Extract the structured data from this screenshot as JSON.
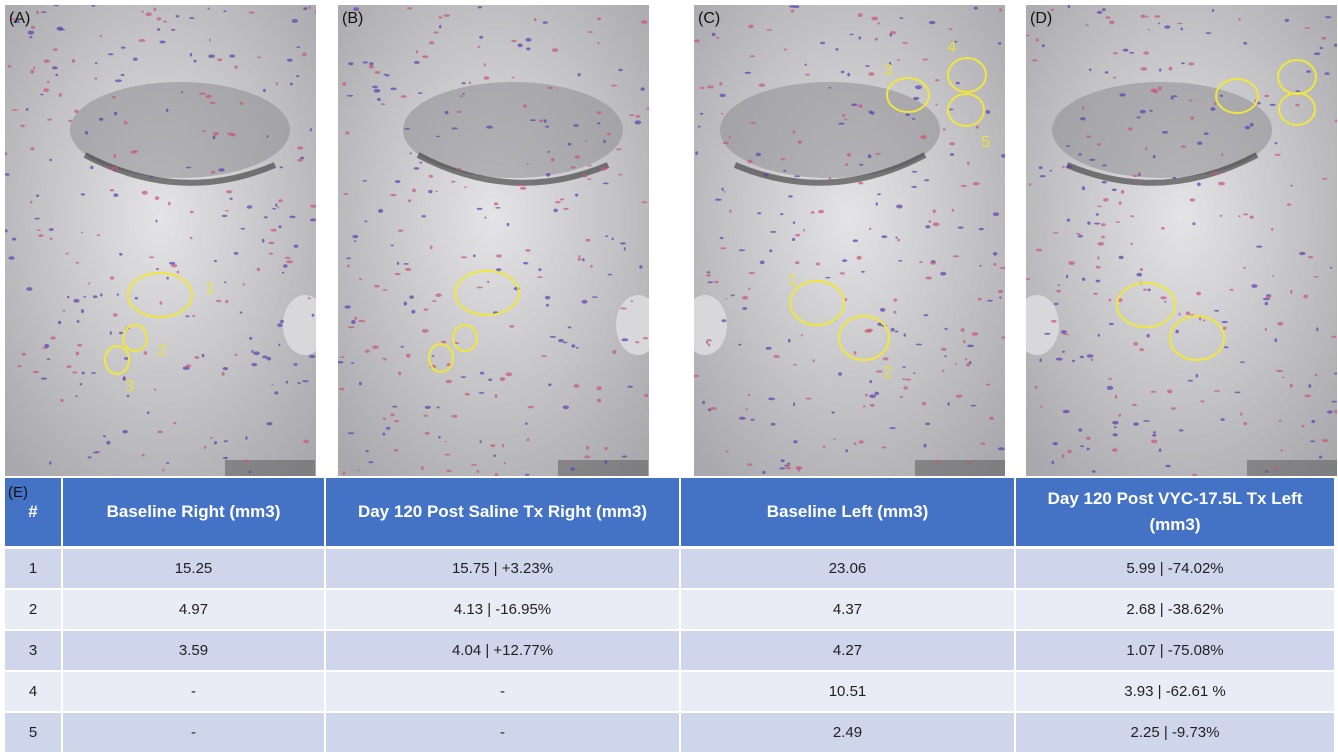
{
  "panels": [
    {
      "label": "(A)",
      "annotations": [
        "1",
        "2",
        "3"
      ]
    },
    {
      "label": "(B)",
      "annotations": []
    },
    {
      "label": "(C)",
      "annotations": [
        "1",
        "2",
        "3",
        "4",
        "5"
      ]
    },
    {
      "label": "(D)",
      "annotations": []
    }
  ],
  "table": {
    "label": "(E)",
    "header": [
      "#",
      "Baseline Right (mm3)",
      "Day 120 Post Saline Tx Right (mm3)",
      "Baseline Left  (mm3)",
      "Day 120 Post VYC-17.5L Tx Left (mm3)"
    ],
    "rows": [
      [
        "1",
        "15.25",
        "15.75 | +3.23%",
        "23.06",
        "5.99 | -74.02%"
      ],
      [
        "2",
        "4.97",
        "4.13 | -16.95%",
        "4.37",
        "2.68 | -38.62%"
      ],
      [
        "3",
        "3.59",
        "4.04 | +12.77%",
        "4.27",
        "1.07 | -75.08%"
      ],
      [
        "4",
        "-",
        "-",
        "10.51",
        "3.93 | -62.61 %"
      ],
      [
        "5",
        "-",
        "-",
        "2.49",
        "2.25 | -9.73%"
      ]
    ]
  }
}
